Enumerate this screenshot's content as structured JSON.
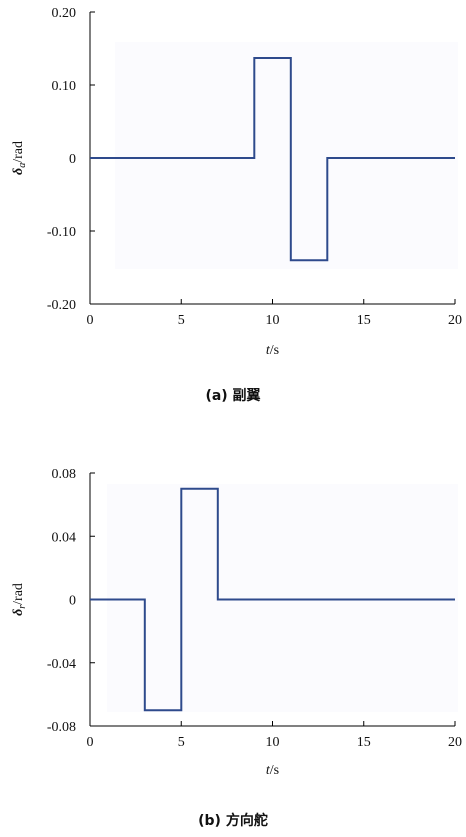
{
  "chart_data": [
    {
      "type": "line",
      "caption": "(a) 副翼",
      "xlabel": "t/s",
      "ylabel": "δa/rad",
      "xlim": [
        0,
        20
      ],
      "ylim": [
        -0.2,
        0.2
      ],
      "xticks": [
        0,
        5,
        10,
        15,
        20
      ],
      "xtick_labels": [
        "0",
        "5",
        "10",
        "15",
        "20"
      ],
      "yticks": [
        0.2,
        0.1,
        0,
        -0.1,
        -0.2
      ],
      "ytick_labels": [
        "0.20",
        "0.10",
        "0",
        "-0.10",
        "-0.20"
      ],
      "grid": false,
      "colors": {
        "line": "#2e4a8c"
      },
      "series": [
        {
          "x": [
            0,
            9,
            9,
            11,
            11,
            13,
            13,
            20
          ],
          "y": [
            0,
            0,
            0.137,
            0.137,
            -0.14,
            -0.14,
            0,
            0
          ]
        }
      ]
    },
    {
      "type": "line",
      "caption": "(b) 方向舵",
      "xlabel": "t/s",
      "ylabel": "δr/rad",
      "xlim": [
        0,
        20
      ],
      "ylim": [
        -0.08,
        0.08
      ],
      "xticks": [
        0,
        5,
        10,
        15,
        20
      ],
      "xtick_labels": [
        "0",
        "5",
        "10",
        "15",
        "20"
      ],
      "yticks": [
        0.08,
        0.04,
        0,
        -0.04,
        -0.08
      ],
      "ytick_labels": [
        "0.08",
        "0.04",
        "0",
        "-0.04",
        "-0.08"
      ],
      "grid": false,
      "colors": {
        "line": "#2e4a8c"
      },
      "series": [
        {
          "x": [
            0,
            3,
            3,
            5,
            5,
            7,
            7,
            20
          ],
          "y": [
            0,
            0,
            -0.07,
            -0.07,
            0.07,
            0.07,
            0,
            0
          ]
        }
      ]
    }
  ]
}
